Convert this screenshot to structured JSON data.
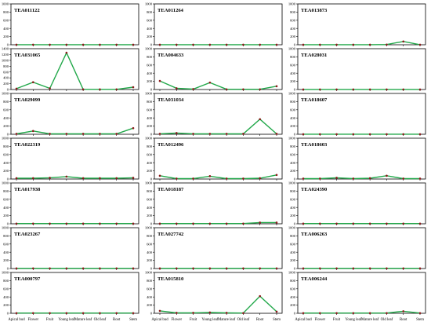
{
  "chart_data": [
    {
      "type": "line",
      "title": "TEA011122",
      "categories": [
        "Apical bud",
        "Flower",
        "Fruit",
        "Young leaf",
        "Mature leaf",
        "Old leaf",
        "Root",
        "Stem"
      ],
      "ylim": [
        0,
        1000
      ],
      "yticks": [
        0,
        200,
        400,
        600,
        800,
        1000
      ],
      "series": [
        {
          "values": [
            2,
            2,
            2,
            2,
            2,
            2,
            2,
            2
          ]
        }
      ]
    },
    {
      "type": "line",
      "title": "TEA011264",
      "categories": [
        "Apical bud",
        "Flower",
        "Fruit",
        "Young leaf",
        "Mature leaf",
        "Old leaf",
        "Root",
        "Stem"
      ],
      "ylim": [
        0,
        1000
      ],
      "yticks": [
        0,
        200,
        400,
        600,
        800,
        1000
      ],
      "series": [
        {
          "values": [
            2,
            2,
            2,
            2,
            2,
            2,
            2,
            2
          ]
        }
      ]
    },
    {
      "type": "line",
      "title": "TEA013873",
      "categories": [
        "Apical bud",
        "Flower",
        "Fruit",
        "Young leaf",
        "Mature leaf",
        "Old leaf",
        "Root",
        "Stem"
      ],
      "ylim": [
        0,
        1000
      ],
      "yticks": [
        0,
        200,
        400,
        600,
        800,
        1000
      ],
      "series": [
        {
          "values": [
            2,
            2,
            2,
            2,
            2,
            5,
            80,
            2
          ]
        }
      ]
    },
    {
      "type": "line",
      "title": "TEA031065",
      "categories": [
        "Apical bud",
        "Flower",
        "Fruit",
        "Young leaf",
        "Mature leaf",
        "Old leaf",
        "Root",
        "Stem"
      ],
      "ylim": [
        0,
        1400
      ],
      "yticks": [
        0,
        200,
        400,
        600,
        800,
        1000,
        1200,
        1400
      ],
      "series": [
        {
          "values": [
            30,
            250,
            40,
            1260,
            5,
            5,
            5,
            80
          ]
        }
      ]
    },
    {
      "type": "line",
      "title": "TEA004633",
      "categories": [
        "Apical bud",
        "Flower",
        "Fruit",
        "Young leaf",
        "Mature leaf",
        "Old leaf",
        "Root",
        "Stem"
      ],
      "ylim": [
        0,
        1000
      ],
      "yticks": [
        0,
        200,
        400,
        600,
        800,
        1000
      ],
      "series": [
        {
          "values": [
            210,
            30,
            10,
            170,
            5,
            5,
            5,
            80
          ]
        }
      ]
    },
    {
      "type": "line",
      "title": "TEA028031",
      "categories": [
        "Apical bud",
        "Flower",
        "Fruit",
        "Young leaf",
        "Mature leaf",
        "Old leaf",
        "Root",
        "Stem"
      ],
      "ylim": [
        0,
        1000
      ],
      "yticks": [
        0,
        200,
        400,
        600,
        800,
        1000
      ],
      "series": [
        {
          "values": [
            2,
            2,
            2,
            2,
            2,
            2,
            2,
            2
          ]
        }
      ]
    },
    {
      "type": "line",
      "title": "TEA029099",
      "categories": [
        "Apical bud",
        "Flower",
        "Fruit",
        "Young leaf",
        "Mature leaf",
        "Old leaf",
        "Root",
        "Stem"
      ],
      "ylim": [
        0,
        1000
      ],
      "yticks": [
        0,
        200,
        400,
        600,
        800,
        1000
      ],
      "series": [
        {
          "values": [
            10,
            80,
            10,
            10,
            10,
            10,
            10,
            150
          ]
        }
      ]
    },
    {
      "type": "line",
      "title": "TEA031034",
      "categories": [
        "Apical bud",
        "Flower",
        "Fruit",
        "Young leaf",
        "Mature leaf",
        "Old leaf",
        "Root",
        "Stem"
      ],
      "ylim": [
        0,
        1000
      ],
      "yticks": [
        0,
        200,
        400,
        600,
        800,
        1000
      ],
      "series": [
        {
          "values": [
            10,
            30,
            10,
            10,
            10,
            10,
            370,
            10
          ]
        }
      ]
    },
    {
      "type": "line",
      "title": "TEA018607",
      "categories": [
        "Apical bud",
        "Flower",
        "Fruit",
        "Young leaf",
        "Mature leaf",
        "Old leaf",
        "Root",
        "Stem"
      ],
      "ylim": [
        0,
        1000
      ],
      "yticks": [
        0,
        200,
        400,
        600,
        800,
        1000
      ],
      "series": [
        {
          "values": [
            2,
            2,
            2,
            2,
            2,
            2,
            2,
            2
          ]
        }
      ]
    },
    {
      "type": "line",
      "title": "TEA022319",
      "categories": [
        "Apical bud",
        "Flower",
        "Fruit",
        "Young leaf",
        "Mature leaf",
        "Old leaf",
        "Root",
        "Stem"
      ],
      "ylim": [
        0,
        1000
      ],
      "yticks": [
        0,
        200,
        400,
        600,
        800,
        1000
      ],
      "series": [
        {
          "values": [
            20,
            20,
            30,
            60,
            20,
            20,
            20,
            30
          ]
        }
      ]
    },
    {
      "type": "line",
      "title": "TEA012496",
      "categories": [
        "Apical bud",
        "Flower",
        "Fruit",
        "Young leaf",
        "Mature leaf",
        "Old leaf",
        "Root",
        "Stem"
      ],
      "ylim": [
        0,
        1000
      ],
      "yticks": [
        0,
        200,
        400,
        600,
        800,
        1000
      ],
      "series": [
        {
          "values": [
            80,
            10,
            10,
            70,
            10,
            10,
            20,
            100
          ]
        }
      ]
    },
    {
      "type": "line",
      "title": "TEA018603",
      "categories": [
        "Apical bud",
        "Flower",
        "Fruit",
        "Young leaf",
        "Mature leaf",
        "Old leaf",
        "Root",
        "Stem"
      ],
      "ylim": [
        0,
        1000
      ],
      "yticks": [
        0,
        200,
        400,
        600,
        800,
        1000
      ],
      "series": [
        {
          "values": [
            10,
            10,
            30,
            10,
            20,
            80,
            10,
            10
          ]
        }
      ]
    },
    {
      "type": "line",
      "title": "TEA017938",
      "categories": [
        "Apical bud",
        "Flower",
        "Fruit",
        "Young leaf",
        "Mature leaf",
        "Old leaf",
        "Root",
        "Stem"
      ],
      "ylim": [
        0,
        1000
      ],
      "yticks": [
        0,
        200,
        400,
        600,
        800,
        1000
      ],
      "series": [
        {
          "values": [
            5,
            5,
            5,
            5,
            5,
            5,
            5,
            5
          ]
        }
      ]
    },
    {
      "type": "line",
      "title": "TEA018187",
      "categories": [
        "Apical bud",
        "Flower",
        "Fruit",
        "Young leaf",
        "Mature leaf",
        "Old leaf",
        "Root",
        "Stem"
      ],
      "ylim": [
        0,
        1000
      ],
      "yticks": [
        0,
        200,
        400,
        600,
        800,
        1000
      ],
      "series": [
        {
          "values": [
            5,
            5,
            5,
            5,
            5,
            5,
            30,
            30
          ]
        }
      ]
    },
    {
      "type": "line",
      "title": "TEA024390",
      "categories": [
        "Apical bud",
        "Flower",
        "Fruit",
        "Young leaf",
        "Mature leaf",
        "Old leaf",
        "Root",
        "Stem"
      ],
      "ylim": [
        0,
        1000
      ],
      "yticks": [
        0,
        200,
        400,
        600,
        800,
        1000
      ],
      "series": [
        {
          "values": [
            5,
            5,
            5,
            5,
            5,
            5,
            5,
            5
          ]
        }
      ]
    },
    {
      "type": "line",
      "title": "TEA023267",
      "categories": [
        "Apical bud",
        "Flower",
        "Fruit",
        "Young leaf",
        "Mature leaf",
        "Old leaf",
        "Root",
        "Stem"
      ],
      "ylim": [
        0,
        1000
      ],
      "yticks": [
        0,
        200,
        400,
        600,
        800,
        1000
      ],
      "series": [
        {
          "values": [
            5,
            5,
            5,
            5,
            5,
            5,
            5,
            5
          ]
        }
      ]
    },
    {
      "type": "line",
      "title": "TEA027742",
      "categories": [
        "Apical bud",
        "Flower",
        "Fruit",
        "Young leaf",
        "Mature leaf",
        "Old leaf",
        "Root",
        "Stem"
      ],
      "ylim": [
        0,
        1000
      ],
      "yticks": [
        0,
        200,
        400,
        600,
        800,
        1000
      ],
      "series": [
        {
          "values": [
            5,
            5,
            5,
            5,
            5,
            5,
            5,
            5
          ]
        }
      ]
    },
    {
      "type": "line",
      "title": "TEA006263",
      "categories": [
        "Apical bud",
        "Flower",
        "Fruit",
        "Young leaf",
        "Mature leaf",
        "Old leaf",
        "Root",
        "Stem"
      ],
      "ylim": [
        0,
        1000
      ],
      "yticks": [
        0,
        200,
        400,
        600,
        800,
        1000
      ],
      "series": [
        {
          "values": [
            5,
            5,
            5,
            5,
            5,
            5,
            5,
            5
          ]
        }
      ]
    },
    {
      "type": "line",
      "title": "TEA000797",
      "categories": [
        "Apical bud",
        "Flower",
        "Fruit",
        "Young leaf",
        "Mature leaf",
        "Old leaf",
        "Root",
        "Stem"
      ],
      "ylim": [
        0,
        1000
      ],
      "yticks": [
        0,
        200,
        400,
        600,
        800,
        1000
      ],
      "series": [
        {
          "values": [
            5,
            5,
            5,
            5,
            5,
            5,
            5,
            5
          ]
        }
      ]
    },
    {
      "type": "line",
      "title": "TEA015810",
      "categories": [
        "Apical bud",
        "Flower",
        "Fruit",
        "Young leaf",
        "Mature leaf",
        "Old leaf",
        "Root",
        "Stem"
      ],
      "ylim": [
        0,
        1000
      ],
      "yticks": [
        0,
        200,
        400,
        600,
        800,
        1000
      ],
      "series": [
        {
          "values": [
            60,
            10,
            10,
            20,
            10,
            5,
            420,
            40
          ]
        }
      ]
    },
    {
      "type": "line",
      "title": "TEA006244",
      "categories": [
        "Apical bud",
        "Flower",
        "Fruit",
        "Young leaf",
        "Mature leaf",
        "Old leaf",
        "Root",
        "Stem"
      ],
      "ylim": [
        0,
        1000
      ],
      "yticks": [
        0,
        200,
        400,
        600,
        800,
        1000
      ],
      "series": [
        {
          "values": [
            5,
            5,
            5,
            5,
            5,
            5,
            50,
            5
          ]
        }
      ]
    }
  ],
  "colors": {
    "line": "#22a84a",
    "marker": "#8b1a1a",
    "axis": "#000000"
  }
}
